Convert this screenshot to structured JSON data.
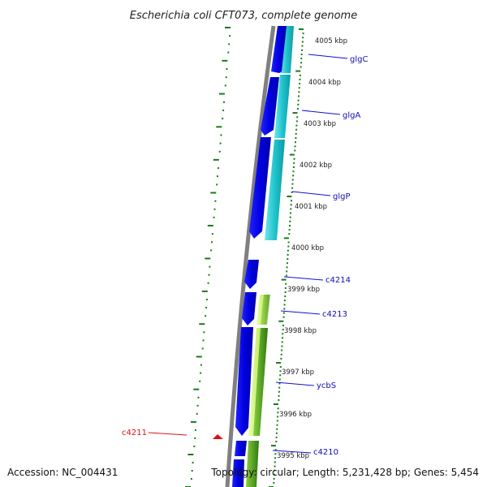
{
  "title": "Escherichia coli CFT073, complete genome",
  "footer": {
    "accession": "Accession: NC_004431",
    "topology": "Topology: circular; Length: 5,231,428 bp; Genes: 5,454"
  },
  "kbp_labels": [
    "4005 kbp",
    "4004 kbp",
    "4003 kbp",
    "4002 kbp",
    "4001 kbp",
    "4000 kbp",
    "3999 kbp",
    "3998 kbp",
    "3997 kbp",
    "3996 kbp",
    "3995 kbp"
  ],
  "genes": [
    {
      "id": "glgC",
      "label": "glgC"
    },
    {
      "id": "glgA",
      "label": "glgA"
    },
    {
      "id": "glgP",
      "label": "glgP"
    },
    {
      "id": "c4214",
      "label": "c4214"
    },
    {
      "id": "c4213",
      "label": "c4213"
    },
    {
      "id": "ycbS",
      "label": "ycbS"
    },
    {
      "id": "c4210",
      "label": "c4210"
    },
    {
      "id": "c4211",
      "label": "c4211"
    }
  ],
  "colors": {
    "backbone": "#808080",
    "strand_blue": "#0000e6",
    "strand_cyan": "#20c8d0",
    "strand_green": "#60b020",
    "strand_lime": "#c8f040",
    "tick_green": "#1a7a1a",
    "label_blue": "#1010b0",
    "label_red": "#e01010"
  }
}
